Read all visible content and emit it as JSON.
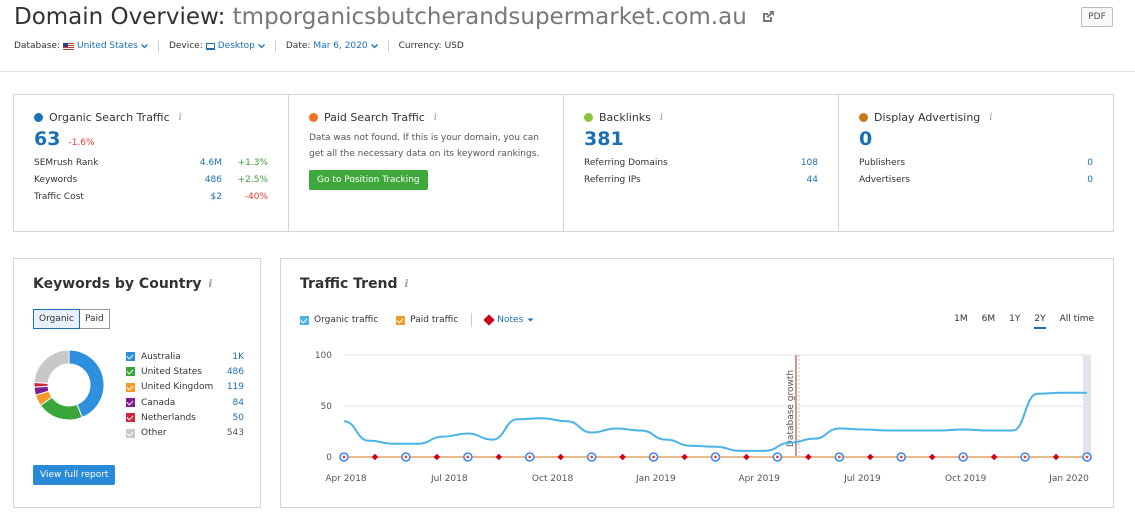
{
  "header": {
    "title_prefix": "Domain Overview:",
    "domain": "tmporganicsbutcherandsupermarket.com.au",
    "pdf_label": "PDF",
    "filters": {
      "database_label": "Database:",
      "database_value": "United States",
      "device_label": "Device:",
      "device_value": "Desktop",
      "date_label": "Date:",
      "date_value": "Mar 6, 2020",
      "currency_label": "Currency:",
      "currency_value": "USD"
    }
  },
  "colors": {
    "accent": "#1a6fb5",
    "organic": "#4ab3e8",
    "paid": "#f39a2a",
    "backlinks": "#8cc63f",
    "display": "#c47a1c"
  },
  "organic": {
    "title": "Organic Search Traffic",
    "value": "63",
    "change": "-1.6%",
    "rows": [
      {
        "label": "SEMrush Rank",
        "value": "4.6M",
        "change": "+1.3%"
      },
      {
        "label": "Keywords",
        "value": "486",
        "change": "+2.5%"
      },
      {
        "label": "Traffic Cost",
        "value": "$2",
        "change": "-40%"
      }
    ]
  },
  "paid": {
    "title": "Paid Search Traffic",
    "message": "Data was not found. If this is your domain, you can get all the necessary data on its keyword rankings.",
    "button": "Go to Position Tracking"
  },
  "backlinks": {
    "title": "Backlinks",
    "value": "381",
    "rows": [
      {
        "label": "Referring Domains",
        "value": "108"
      },
      {
        "label": "Referring IPs",
        "value": "44"
      }
    ]
  },
  "display": {
    "title": "Display Advertising",
    "value": "0",
    "rows": [
      {
        "label": "Publishers",
        "value": "0"
      },
      {
        "label": "Advertisers",
        "value": "0"
      }
    ]
  },
  "kbc": {
    "title": "Keywords by Country",
    "toggle_organic": "Organic",
    "toggle_paid": "Paid",
    "button": "View full report",
    "countries": [
      {
        "name": "Australia",
        "value": "1K",
        "count": 1000,
        "color": "#2d8fdd"
      },
      {
        "name": "United States",
        "value": "486",
        "count": 486,
        "color": "#3aa63a"
      },
      {
        "name": "United Kingdom",
        "value": "119",
        "count": 119,
        "color": "#f39a2a"
      },
      {
        "name": "Canada",
        "value": "84",
        "count": 84,
        "color": "#7e1e8f"
      },
      {
        "name": "Netherlands",
        "value": "50",
        "count": 50,
        "color": "#d0263a"
      },
      {
        "name": "Other",
        "value": "543",
        "count": 543,
        "color": "#c8c8c8"
      }
    ]
  },
  "trend": {
    "title": "Traffic Trend",
    "organic_label": "Organic traffic",
    "paid_label": "Paid traffic",
    "notes_label": "Notes",
    "ranges": [
      "1M",
      "6M",
      "1Y",
      "2Y",
      "All time"
    ],
    "selected_range": "2Y",
    "annotation": "Database growth"
  },
  "chart_data": {
    "type": "line",
    "x_ticks": [
      "Apr 2018",
      "Jul 2018",
      "Oct 2018",
      "Jan 2019",
      "Apr 2019",
      "Jul 2019",
      "Oct 2019",
      "Jan 2020"
    ],
    "y_ticks": [
      0,
      50,
      100
    ],
    "ylim": [
      0,
      100
    ],
    "series": [
      {
        "name": "Organic traffic",
        "points": [
          35,
          16,
          13,
          13,
          20,
          23,
          17,
          37,
          38,
          35,
          24,
          28,
          26,
          17,
          11,
          10,
          6,
          6,
          14,
          18,
          28,
          27,
          26,
          26,
          26,
          27,
          26,
          26,
          62,
          63,
          63
        ]
      },
      {
        "name": "Paid traffic",
        "points": [
          0,
          0,
          0,
          0,
          0,
          0,
          0,
          0,
          0,
          0,
          0,
          0,
          0,
          0,
          0,
          0,
          0,
          0,
          0,
          0,
          0,
          0,
          0,
          0,
          0,
          0,
          0,
          0,
          0,
          0,
          0
        ]
      }
    ]
  }
}
